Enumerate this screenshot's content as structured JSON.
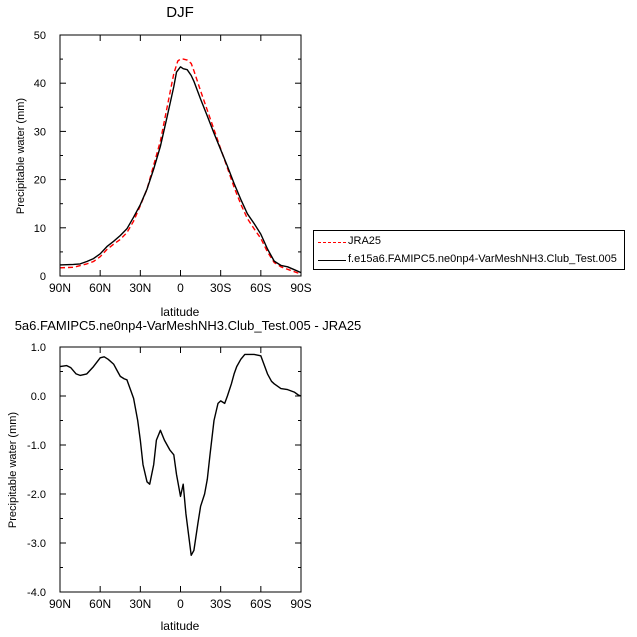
{
  "chart_data": [
    {
      "type": "line",
      "title": "DJF",
      "xlabel": "latitude",
      "ylabel": "Precipitable water (mm)",
      "xlim": [
        -90,
        90
      ],
      "ylim": [
        0,
        50
      ],
      "x_ticks": [
        -90,
        -60,
        -30,
        0,
        30,
        60,
        90
      ],
      "x_tick_labels": [
        "90N",
        "60N",
        "30N",
        "0",
        "30S",
        "60S",
        "90S"
      ],
      "y_ticks": [
        0,
        10,
        20,
        30,
        40,
        50
      ],
      "y_tick_labels": [
        "0",
        "10",
        "20",
        "30",
        "40",
        "50"
      ],
      "grid": false,
      "legend_position": "right",
      "series": [
        {
          "name": "JRA25",
          "color": "#ff0000",
          "dash": "dashed",
          "x": [
            -90,
            -80,
            -70,
            -65,
            -60,
            -55,
            -50,
            -45,
            -40,
            -35,
            -30,
            -25,
            -20,
            -15,
            -10,
            -5,
            -2,
            0,
            2,
            5,
            8,
            10,
            15,
            20,
            25,
            30,
            35,
            40,
            45,
            50,
            55,
            60,
            65,
            70,
            75,
            80,
            85,
            90
          ],
          "y": [
            1.7,
            1.8,
            2.5,
            3.0,
            4.0,
            5.5,
            6.6,
            7.6,
            9.0,
            11.4,
            14.6,
            18.0,
            23.0,
            28.0,
            35.0,
            42.0,
            44.6,
            45.0,
            45.0,
            44.8,
            44.1,
            42.6,
            38.4,
            34.4,
            30.4,
            26.4,
            22.4,
            18.4,
            14.9,
            11.9,
            9.8,
            7.8,
            5.0,
            2.8,
            1.9,
            1.4,
            0.9,
            0.4
          ]
        },
        {
          "name": "f.e15a6.FAMIPC5.ne0np4-VarMeshNH3.Club_Test.005",
          "color": "#000000",
          "dash": "solid",
          "x": [
            -90,
            -80,
            -75,
            -70,
            -65,
            -60,
            -55,
            -50,
            -45,
            -40,
            -35,
            -30,
            -25,
            -20,
            -15,
            -10,
            -5,
            -3,
            0,
            2,
            5,
            8,
            10,
            15,
            20,
            25,
            30,
            35,
            40,
            45,
            50,
            55,
            60,
            65,
            70,
            75,
            80,
            85,
            90
          ],
          "y": [
            2.3,
            2.4,
            2.5,
            3.0,
            3.6,
            4.6,
            6.1,
            7.2,
            8.4,
            9.8,
            12.2,
            14.8,
            18.0,
            22.2,
            26.9,
            33.0,
            39.3,
            42.3,
            43.4,
            43.0,
            42.8,
            41.6,
            40.4,
            36.7,
            33.2,
            29.6,
            26.2,
            22.8,
            19.2,
            15.9,
            12.9,
            10.9,
            8.7,
            5.6,
            3.1,
            2.2,
            1.9,
            1.3,
            0.7
          ]
        }
      ]
    },
    {
      "type": "line",
      "title": "5a6.FAMIPC5.ne0np4-VarMeshNH3.Club_Test.005 - JRA25",
      "xlabel": "latitude",
      "ylabel": "Precipitable water (mm)",
      "xlim": [
        -90,
        90
      ],
      "ylim": [
        -4.0,
        1.0
      ],
      "x_ticks": [
        -90,
        -60,
        -30,
        0,
        30,
        60,
        90
      ],
      "x_tick_labels": [
        "90N",
        "60N",
        "30N",
        "0",
        "30S",
        "60S",
        "90S"
      ],
      "y_ticks": [
        -4.0,
        -3.0,
        -2.0,
        -1.0,
        0.0,
        1.0
      ],
      "y_tick_labels": [
        "-4.0",
        "-3.0",
        "-2.0",
        "-1.0",
        "0.0",
        "1.0"
      ],
      "grid": false,
      "series": [
        {
          "color": "#000000",
          "dash": "solid",
          "x": [
            -90,
            -85,
            -82,
            -78,
            -75,
            -70,
            -65,
            -60,
            -57,
            -54,
            -50,
            -47,
            -45,
            -42,
            -40,
            -37,
            -35,
            -32,
            -30,
            -28,
            -25,
            -23,
            -20,
            -18,
            -15,
            -12,
            -10,
            -8,
            -5,
            -3,
            0,
            2,
            4,
            8,
            10,
            13,
            15,
            18,
            20,
            22,
            25,
            28,
            30,
            33,
            35,
            38,
            40,
            42,
            45,
            48,
            50,
            55,
            60,
            65,
            68,
            70,
            75,
            80,
            85,
            88,
            90
          ],
          "y": [
            0.6,
            0.62,
            0.58,
            0.45,
            0.42,
            0.45,
            0.6,
            0.78,
            0.8,
            0.75,
            0.65,
            0.5,
            0.4,
            0.35,
            0.33,
            0.1,
            -0.05,
            -0.5,
            -0.9,
            -1.4,
            -1.75,
            -1.8,
            -1.4,
            -0.9,
            -0.7,
            -0.9,
            -1.0,
            -1.1,
            -1.2,
            -1.6,
            -2.05,
            -1.8,
            -2.4,
            -3.25,
            -3.15,
            -2.6,
            -2.25,
            -2.0,
            -1.7,
            -1.2,
            -0.5,
            -0.15,
            -0.1,
            -0.15,
            0.0,
            0.25,
            0.45,
            0.6,
            0.75,
            0.85,
            0.85,
            0.85,
            0.82,
            0.45,
            0.3,
            0.25,
            0.15,
            0.13,
            0.08,
            0.02,
            0.0
          ]
        }
      ]
    }
  ]
}
